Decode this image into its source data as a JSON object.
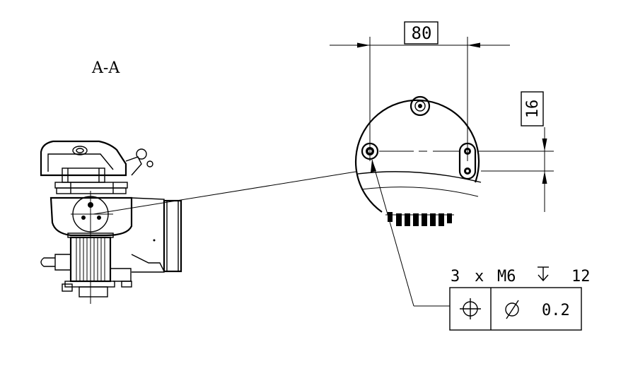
{
  "section_label": "A-A",
  "dimensions": {
    "horizontal": "80",
    "vertical": "16"
  },
  "hole_callout": {
    "count": "3",
    "times": "x",
    "thread": "M6",
    "depth_symbol": "↧",
    "depth": "12"
  },
  "feature_control_frame": {
    "symbol": "position",
    "diameter_symbol": "⌀",
    "tolerance": "0.2"
  },
  "colors": {
    "line": "#000000",
    "background": "#ffffff"
  }
}
